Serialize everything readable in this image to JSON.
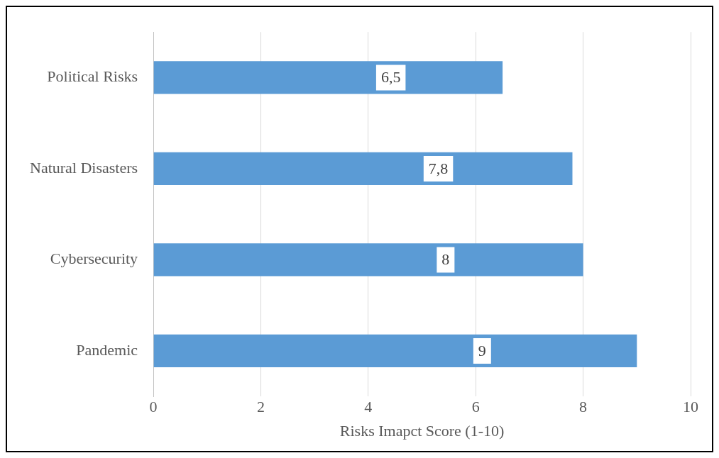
{
  "chart_data": {
    "type": "bar",
    "orientation": "horizontal",
    "xlabel": "Risks Imapct Score (1-10)",
    "categories": [
      "Political Risks",
      "Natural Disasters",
      "Cybersecurity",
      "Pandemic"
    ],
    "values": [
      6.5,
      7.8,
      8,
      9
    ],
    "value_labels": [
      "6,5",
      "7,8",
      "8",
      "9"
    ],
    "color": "#5b9bd5",
    "xlim": [
      0,
      10
    ],
    "xticks": [
      0,
      2,
      4,
      6,
      8,
      10
    ],
    "grid": "x",
    "legend": false
  }
}
